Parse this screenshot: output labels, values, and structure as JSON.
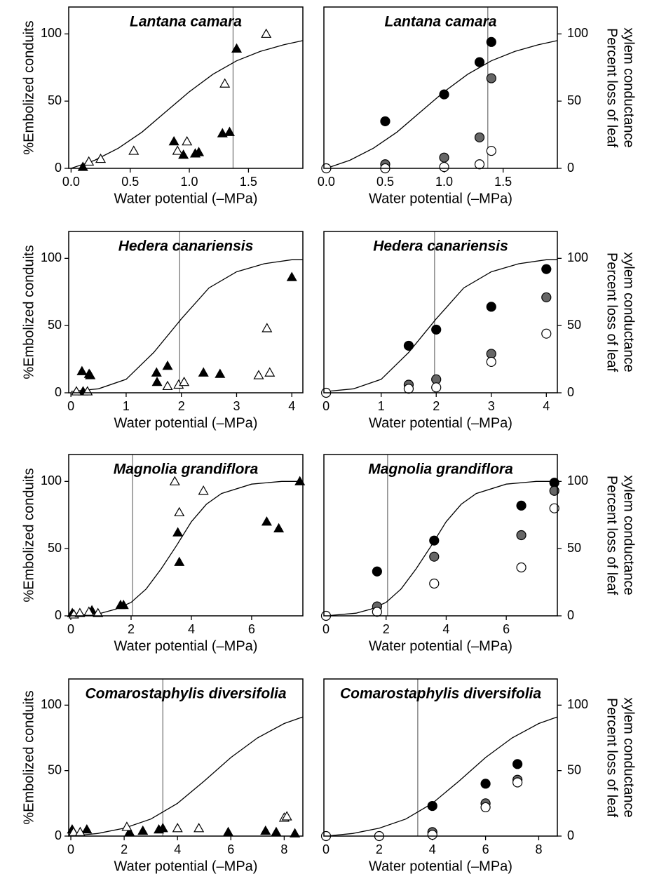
{
  "chart_data": [
    {
      "type": "scatter",
      "title": "Lantana camara",
      "xlabel": "Water potential (–MPa)",
      "ylabel": [
        "%Embolized conduits"
      ],
      "yaxis_side": "left",
      "xlim": [
        -0.02,
        1.96
      ],
      "ylim": [
        0,
        120
      ],
      "xticks": [
        {
          "value": 0,
          "label": "0.0"
        },
        0.5,
        {
          "value": 1,
          "label": "1.0"
        },
        1.5
      ],
      "yticks": [
        0,
        50,
        100
      ],
      "vline": 1.37,
      "curve": {
        "x": [
          0,
          0.2,
          0.4,
          0.6,
          0.8,
          1.0,
          1.2,
          1.4,
          1.6,
          1.8,
          1.96
        ],
        "values": [
          0,
          6,
          15,
          27,
          42,
          57,
          70,
          80,
          87,
          92,
          95
        ]
      },
      "series": [
        {
          "marker": "triangle",
          "color": "#000000",
          "x": [
            0.1,
            0.87,
            0.95,
            1.05,
            1.08,
            1.28,
            1.34,
            1.4
          ],
          "values": [
            1,
            20,
            10,
            11,
            12,
            26,
            27,
            89
          ]
        },
        {
          "marker": "triangle",
          "color": "#ffffff",
          "x": [
            0.15,
            0.25,
            0.53,
            0.9,
            0.98,
            1.3,
            1.65
          ],
          "values": [
            5,
            7,
            13,
            13,
            20,
            63,
            100
          ]
        }
      ]
    },
    {
      "type": "scatter",
      "title": "Lantana camara",
      "xlabel": "Water potential (–MPa)",
      "ylabel": [
        "Percent loss of leaf",
        "xylem conductance"
      ],
      "yaxis_side": "right",
      "xlim": [
        -0.02,
        1.96
      ],
      "ylim": [
        0,
        120
      ],
      "xticks": [
        {
          "value": 0,
          "label": "0.0"
        },
        0.5,
        {
          "value": 1,
          "label": "1.0"
        },
        1.5
      ],
      "yticks": [
        0,
        50,
        100
      ],
      "vline": 1.37,
      "curve": {
        "x": [
          0,
          0.2,
          0.4,
          0.6,
          0.8,
          1.0,
          1.2,
          1.4,
          1.6,
          1.8,
          1.96
        ],
        "values": [
          0,
          6,
          15,
          27,
          42,
          57,
          70,
          80,
          87,
          92,
          95
        ]
      },
      "series": [
        {
          "marker": "circle",
          "color": "#000000",
          "x": [
            0.5,
            1.0,
            1.3,
            1.4
          ],
          "values": [
            35,
            55,
            79,
            94
          ]
        },
        {
          "marker": "circle",
          "color": "#666666",
          "x": [
            0.5,
            1.0,
            1.3,
            1.4
          ],
          "values": [
            3,
            8,
            23,
            67
          ]
        },
        {
          "marker": "circle",
          "color": "#ffffff",
          "x": [
            0,
            0.5,
            1.0,
            1.3,
            1.4
          ],
          "values": [
            0,
            0,
            1,
            3,
            13
          ]
        }
      ]
    },
    {
      "type": "scatter",
      "title": "Hedera canariensis",
      "xlabel": "Water potential (–MPa)",
      "ylabel": [
        "%Embolized conduits"
      ],
      "yaxis_side": "left",
      "xlim": [
        -0.04,
        4.2
      ],
      "ylim": [
        0,
        120
      ],
      "xticks": [
        0,
        1,
        2,
        3,
        4
      ],
      "yticks": [
        0,
        50,
        100
      ],
      "vline": 1.97,
      "curve": {
        "x": [
          0,
          0.5,
          1,
          1.5,
          2,
          2.5,
          3,
          3.5,
          4,
          4.2
        ],
        "values": [
          1,
          3,
          10,
          30,
          55,
          78,
          90,
          96,
          99,
          99
        ]
      },
      "series": [
        {
          "marker": "triangle",
          "color": "#000000",
          "x": [
            0.2,
            0.22,
            0.33,
            0.35,
            1.55,
            1.56,
            1.75,
            2.4,
            2.7,
            4.0
          ],
          "values": [
            16,
            1,
            14,
            13,
            15,
            8,
            20,
            15,
            14,
            86
          ]
        },
        {
          "marker": "triangle",
          "color": "#ffffff",
          "x": [
            0.1,
            0.3,
            1.75,
            1.95,
            2.05,
            3.4,
            3.55,
            3.6
          ],
          "values": [
            1,
            1,
            5,
            6,
            8,
            13,
            48,
            15
          ]
        }
      ]
    },
    {
      "type": "scatter",
      "title": "Hedera canariensis",
      "xlabel": "Water potential (–MPa)",
      "ylabel": [
        "Percent loss of leaf",
        "xylem conductance"
      ],
      "yaxis_side": "right",
      "xlim": [
        -0.04,
        4.2
      ],
      "ylim": [
        0,
        120
      ],
      "xticks": [
        0,
        1,
        2,
        3,
        4
      ],
      "yticks": [
        0,
        50,
        100
      ],
      "vline": 1.97,
      "curve": {
        "x": [
          0,
          0.5,
          1,
          1.5,
          2,
          2.5,
          3,
          3.5,
          4,
          4.2
        ],
        "values": [
          1,
          3,
          10,
          30,
          55,
          78,
          90,
          96,
          99,
          99
        ]
      },
      "series": [
        {
          "marker": "circle",
          "color": "#000000",
          "x": [
            1.5,
            2.0,
            3.0,
            4.0
          ],
          "values": [
            35,
            47,
            64,
            92
          ]
        },
        {
          "marker": "circle",
          "color": "#666666",
          "x": [
            1.5,
            2.0,
            3.0,
            4.0
          ],
          "values": [
            6,
            10,
            29,
            71
          ]
        },
        {
          "marker": "circle",
          "color": "#ffffff",
          "x": [
            0,
            1.5,
            2.0,
            3.0,
            4.0
          ],
          "values": [
            0,
            3,
            4,
            23,
            44
          ]
        }
      ]
    },
    {
      "type": "scatter",
      "title": "Magnolia grandiflora",
      "xlabel": "Water potential (–MPa)",
      "ylabel": [
        "%Embolized conduits"
      ],
      "yaxis_side": "left",
      "xlim": [
        -0.07,
        7.7
      ],
      "ylim": [
        0,
        120
      ],
      "xticks": [
        0,
        2,
        4,
        6
      ],
      "yticks": [
        0,
        50,
        100
      ],
      "vline": 2.05,
      "curve": {
        "x": [
          0,
          1,
          1.5,
          2,
          2.5,
          3,
          3.5,
          4,
          4.5,
          5,
          6,
          7,
          7.7
        ],
        "values": [
          0,
          2,
          5,
          10,
          20,
          35,
          52,
          70,
          83,
          91,
          98,
          100,
          100
        ]
      },
      "series": [
        {
          "marker": "triangle",
          "color": "#000000",
          "x": [
            0.05,
            0.7,
            1.65,
            1.75,
            3.55,
            3.6,
            6.5,
            6.9,
            7.6
          ],
          "values": [
            2,
            4,
            8,
            8,
            62,
            40,
            70,
            65,
            100
          ]
        },
        {
          "marker": "triangle",
          "color": "#ffffff",
          "x": [
            0.1,
            0.3,
            0.6,
            0.9,
            3.45,
            3.6,
            4.4
          ],
          "values": [
            1,
            2,
            3,
            2,
            100,
            77,
            93
          ]
        }
      ]
    },
    {
      "type": "scatter",
      "title": "Magnolia grandiflora",
      "xlabel": "Water potential (–MPa)",
      "ylabel": [
        "Percent loss of leaf",
        "xylem conductance"
      ],
      "yaxis_side": "right",
      "xlim": [
        -0.07,
        7.7
      ],
      "ylim": [
        0,
        120
      ],
      "xticks": [
        0,
        2,
        4,
        6
      ],
      "yticks": [
        0,
        50,
        100
      ],
      "vline": 2.05,
      "curve": {
        "x": [
          0,
          1,
          1.5,
          2,
          2.5,
          3,
          3.5,
          4,
          4.5,
          5,
          6,
          7,
          7.7
        ],
        "values": [
          0,
          2,
          5,
          10,
          20,
          35,
          52,
          70,
          83,
          91,
          98,
          100,
          100
        ]
      },
      "series": [
        {
          "marker": "circle",
          "color": "#000000",
          "x": [
            1.7,
            3.6,
            6.5,
            7.6
          ],
          "values": [
            33,
            56,
            82,
            99
          ]
        },
        {
          "marker": "circle",
          "color": "#666666",
          "x": [
            1.7,
            3.6,
            6.5,
            7.6
          ],
          "values": [
            7,
            44,
            60,
            93
          ]
        },
        {
          "marker": "circle",
          "color": "#ffffff",
          "x": [
            0,
            1.7,
            3.6,
            6.5,
            7.6
          ],
          "values": [
            0,
            3,
            24,
            36,
            80
          ]
        }
      ]
    },
    {
      "type": "scatter",
      "title": "Comarostaphylis diversifolia",
      "xlabel": "Water potential (–MPa)",
      "ylabel": [
        "%Embolized conduits"
      ],
      "yaxis_side": "left",
      "xlim": [
        -0.08,
        8.7
      ],
      "ylim": [
        0,
        120
      ],
      "xticks": [
        0,
        2,
        4,
        6,
        8
      ],
      "yticks": [
        0,
        50,
        100
      ],
      "vline": 3.45,
      "curve": {
        "x": [
          0,
          1,
          2,
          3,
          4,
          5,
          6,
          7,
          8,
          8.7
        ],
        "values": [
          0,
          2,
          6,
          13,
          25,
          42,
          60,
          75,
          86,
          91
        ]
      },
      "series": [
        {
          "marker": "triangle",
          "color": "#000000",
          "x": [
            0.05,
            0.6,
            2.2,
            2.7,
            3.3,
            3.45,
            5.9,
            7.3,
            7.7,
            8.4
          ],
          "values": [
            5,
            5,
            3,
            4,
            5,
            6,
            3,
            4,
            3,
            2
          ]
        },
        {
          "marker": "triangle",
          "color": "#ffffff",
          "x": [
            0.1,
            0.35,
            2.1,
            4.0,
            4.8,
            8.0,
            8.1
          ],
          "values": [
            3,
            3,
            7,
            6,
            6,
            14,
            15
          ]
        }
      ]
    },
    {
      "type": "scatter",
      "title": "Comarostaphylis diversifolia",
      "xlabel": "Water potential (–MPa)",
      "ylabel": [
        "Percent loss of leaf",
        "xylem conductance"
      ],
      "yaxis_side": "right",
      "xlim": [
        -0.08,
        8.7
      ],
      "ylim": [
        0,
        120
      ],
      "xticks": [
        0,
        2,
        4,
        6,
        8
      ],
      "yticks": [
        0,
        50,
        100
      ],
      "vline": 3.45,
      "curve": {
        "x": [
          0,
          1,
          2,
          3,
          4,
          5,
          6,
          7,
          8,
          8.7
        ],
        "values": [
          0,
          2,
          6,
          13,
          25,
          42,
          60,
          75,
          86,
          91
        ]
      },
      "series": [
        {
          "marker": "circle",
          "color": "#000000",
          "x": [
            4,
            6,
            7.2
          ],
          "values": [
            23,
            40,
            55
          ]
        },
        {
          "marker": "circle",
          "color": "#666666",
          "x": [
            4,
            6,
            7.2
          ],
          "values": [
            3,
            25,
            43
          ]
        },
        {
          "marker": "circle",
          "color": "#ffffff",
          "x": [
            0,
            2,
            4,
            6,
            7.2
          ],
          "values": [
            0,
            0,
            1,
            22,
            41
          ]
        }
      ]
    }
  ]
}
